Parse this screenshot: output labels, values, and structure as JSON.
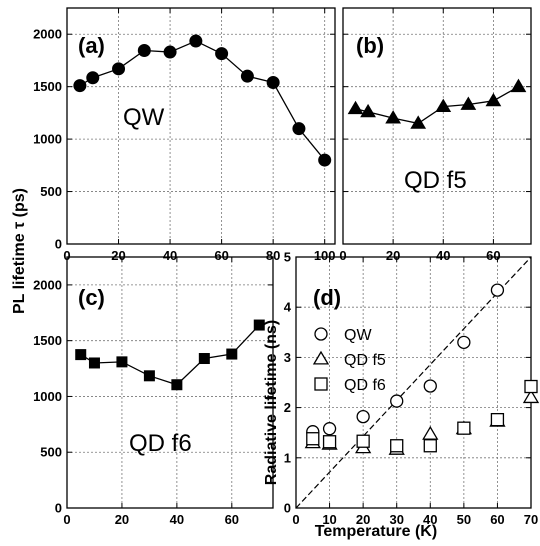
{
  "figure": {
    "ylabel_left": "PL lifetime τ (ps)",
    "xlabel": "Temperature (K)"
  },
  "chart_data": [
    {
      "type": "line",
      "panel": "(a)",
      "annotation": "QW",
      "x": [
        5,
        10,
        20,
        30,
        40,
        50,
        60,
        70,
        80,
        90,
        100
      ],
      "series": [
        {
          "values": [
            1510,
            1585,
            1670,
            1845,
            1830,
            1935,
            1815,
            1600,
            1540,
            1100,
            800
          ]
        }
      ],
      "xlim": [
        0,
        104
      ],
      "ylim": [
        0,
        2250
      ],
      "xticks": [
        "0",
        "20",
        "40",
        "60",
        "80",
        "100"
      ],
      "yticks": [
        "0",
        "500",
        "1000",
        "1500",
        "2000"
      ],
      "marker": "circle",
      "grid": true
    },
    {
      "type": "line",
      "panel": "(b)",
      "annotation": "QD f5",
      "x": [
        5,
        10,
        20,
        30,
        40,
        50,
        60,
        70
      ],
      "series": [
        {
          "values": [
            1290,
            1260,
            1200,
            1150,
            1310,
            1330,
            1365,
            1500
          ]
        }
      ],
      "xlim": [
        0,
        75
      ],
      "ylim": [
        0,
        2250
      ],
      "xticks": [
        "0",
        "20",
        "40",
        "60"
      ],
      "marker": "triangle",
      "grid": true
    },
    {
      "type": "line",
      "panel": "(c)",
      "annotation": "QD f6",
      "x": [
        5,
        10,
        20,
        30,
        40,
        50,
        60,
        70
      ],
      "series": [
        {
          "values": [
            1375,
            1300,
            1310,
            1185,
            1105,
            1340,
            1380,
            1640
          ]
        }
      ],
      "xlim": [
        0,
        75
      ],
      "ylim": [
        0,
        2250
      ],
      "xticks": [
        "0",
        "20",
        "40",
        "60"
      ],
      "yticks": [
        "0",
        "500",
        "1000",
        "1500",
        "2000"
      ],
      "marker": "square",
      "grid": true
    },
    {
      "type": "scatter",
      "panel": "(d)",
      "ylabel": "Radiative lifetime (ns)",
      "xlim": [
        0,
        70
      ],
      "ylim": [
        0,
        5
      ],
      "xticks": [
        "0",
        "10",
        "20",
        "30",
        "40",
        "50",
        "60",
        "70"
      ],
      "yticks": [
        "0",
        "1",
        "2",
        "3",
        "4",
        "5"
      ],
      "series": [
        {
          "name": "QW",
          "marker": "circle",
          "x": [
            5,
            10,
            20,
            30,
            40,
            50,
            60
          ],
          "values": [
            1.52,
            1.58,
            1.82,
            2.13,
            2.43,
            3.3,
            4.34
          ]
        },
        {
          "name": "QD f5",
          "marker": "triangle",
          "x": [
            5,
            10,
            20,
            30,
            40,
            50,
            60,
            70
          ],
          "values": [
            1.3,
            1.27,
            1.2,
            1.17,
            1.47,
            1.58,
            1.73,
            2.2
          ]
        },
        {
          "name": "QD f6",
          "marker": "square",
          "x": [
            5,
            10,
            20,
            30,
            40,
            50,
            60,
            70
          ],
          "values": [
            1.38,
            1.32,
            1.33,
            1.24,
            1.24,
            1.59,
            1.76,
            2.42
          ]
        }
      ],
      "reference_line": {
        "style": "dashed",
        "x": [
          0,
          70
        ],
        "values": [
          0,
          5.2
        ]
      },
      "legend_position": "upper-left",
      "grid": true
    }
  ]
}
